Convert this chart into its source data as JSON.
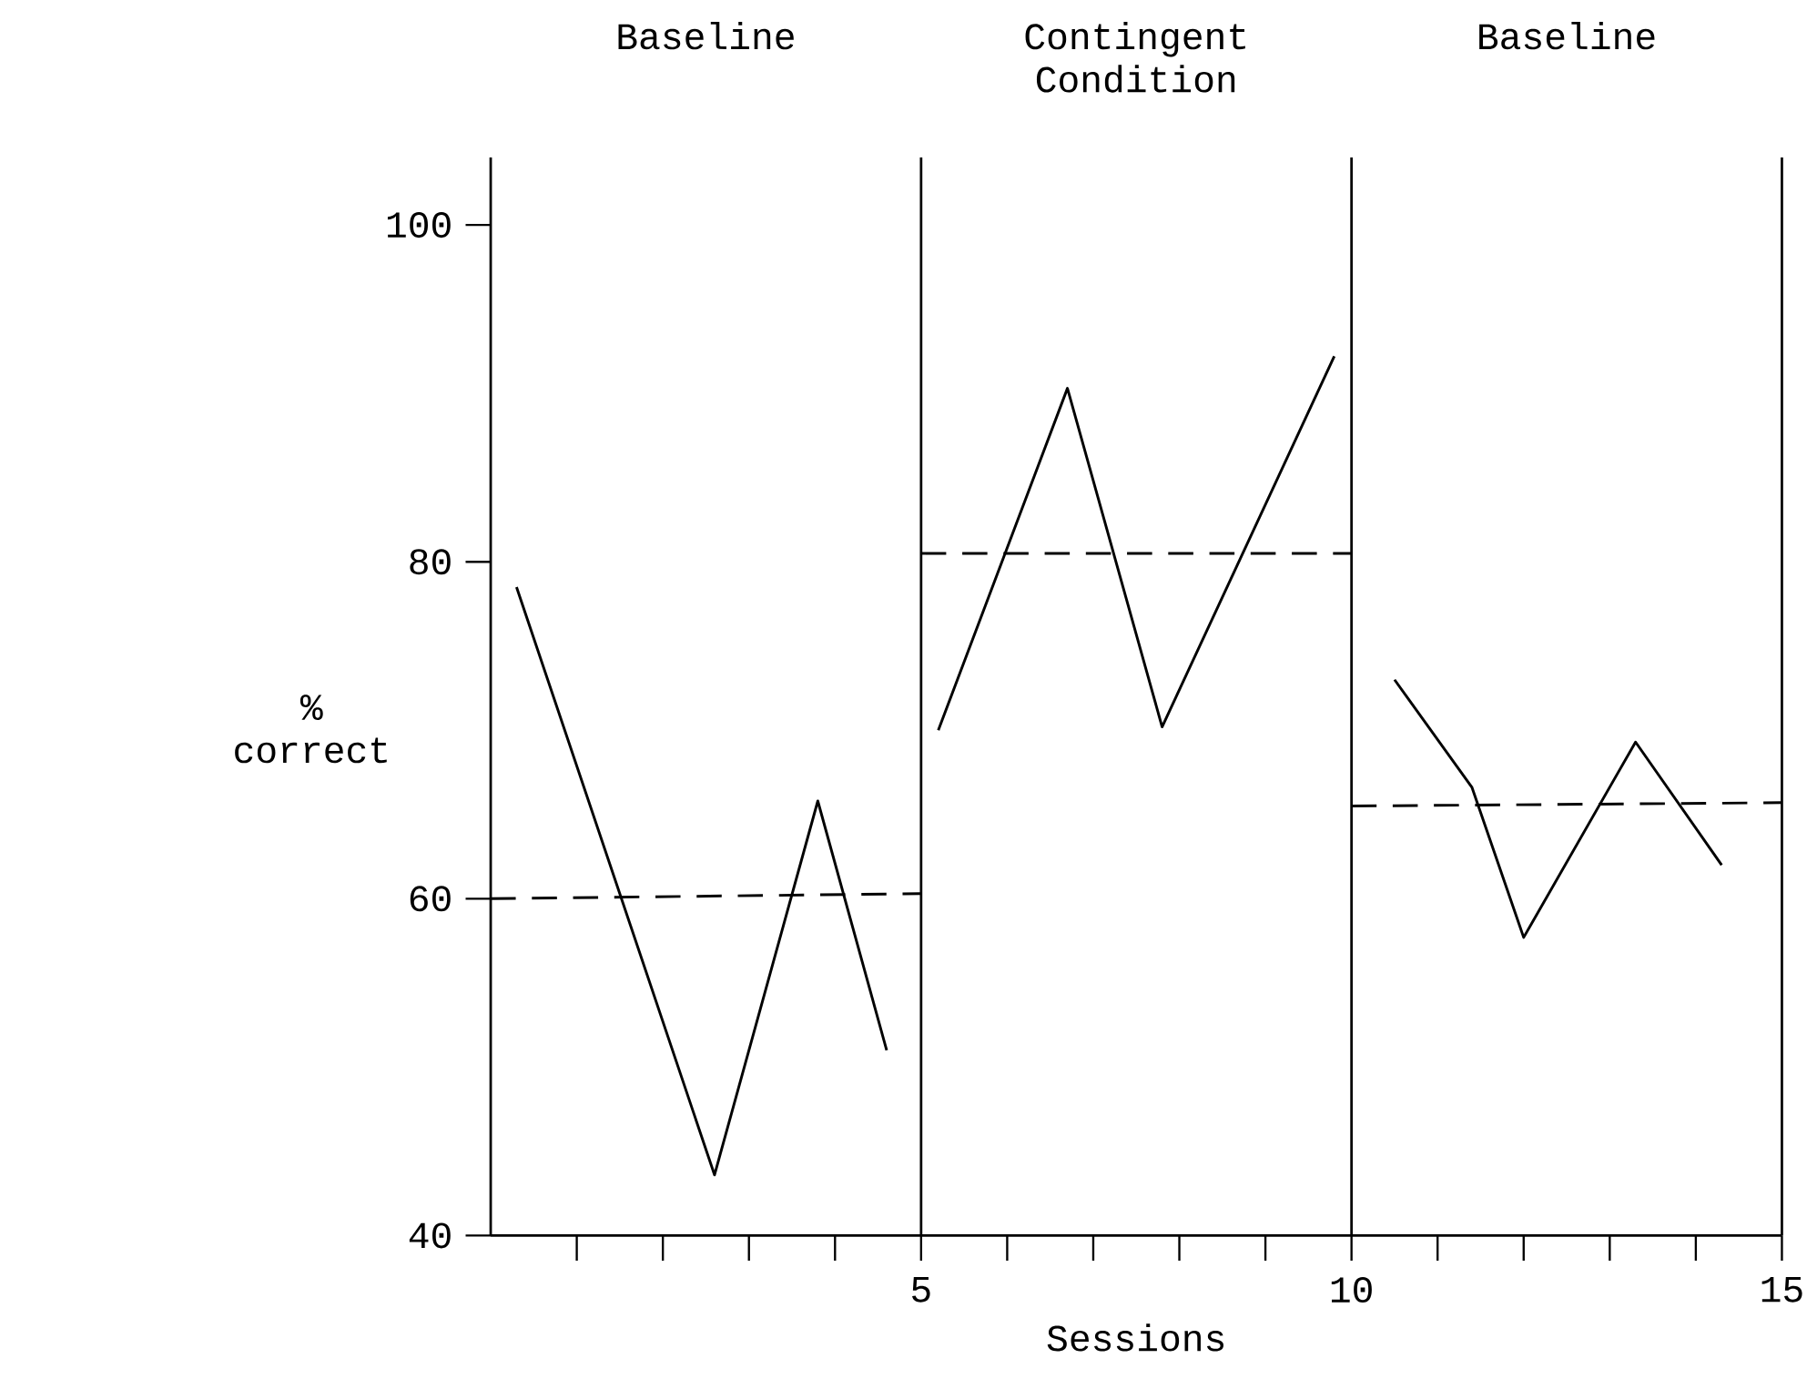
{
  "chart_data": {
    "type": "line",
    "xlabel": "Sessions",
    "ylabel": "% correct",
    "xlim": [
      0,
      15
    ],
    "ylim": [
      40,
      104
    ],
    "xticks": [
      {
        "value": 1,
        "label": null
      },
      {
        "value": 2,
        "label": null
      },
      {
        "value": 3,
        "label": null
      },
      {
        "value": 4,
        "label": null
      },
      5,
      {
        "value": 6,
        "label": null
      },
      {
        "value": 7,
        "label": null
      },
      {
        "value": 8,
        "label": null
      },
      {
        "value": 9,
        "label": null
      },
      10,
      {
        "value": 11,
        "label": null
      },
      {
        "value": 12,
        "label": null
      },
      {
        "value": 13,
        "label": null
      },
      {
        "value": 14,
        "label": null
      },
      15
    ],
    "yticks": [
      40,
      60,
      80,
      100
    ],
    "series": [
      {
        "color": "#000000",
        "x": [
          0.3,
          2.6,
          3.8,
          4.6
        ],
        "values": [
          78.5,
          43.6,
          65.8,
          51
        ]
      },
      {
        "color": "#000000",
        "x": [
          5.2,
          6.7,
          7.8,
          9.8
        ],
        "values": [
          70,
          90.3,
          70.2,
          92.2
        ]
      },
      {
        "color": "#000000",
        "x": [
          10.5,
          11.4,
          12.0,
          13.3,
          14.3
        ],
        "values": [
          73,
          66.6,
          57.7,
          69.3,
          62
        ]
      },
      {
        "color": "#000000",
        "line_style": "dashed",
        "x": [
          0,
          5
        ],
        "values": [
          60,
          60.3
        ]
      },
      {
        "color": "#000000",
        "line_style": "dashed",
        "x": [
          5,
          10
        ],
        "values": [
          80.5,
          80.5
        ]
      },
      {
        "color": "#000000",
        "line_style": "dashed",
        "x": [
          10,
          15
        ],
        "values": [
          65.5,
          65.7
        ]
      }
    ],
    "ref_lines": [
      {
        "axis": "x",
        "value": 5
      },
      {
        "axis": "x",
        "value": 10
      },
      {
        "axis": "x",
        "value": 15
      }
    ],
    "annotations": [
      "Baseline",
      "Contingent Condition",
      "Baseline"
    ],
    "marker": "none",
    "grid": false
  }
}
